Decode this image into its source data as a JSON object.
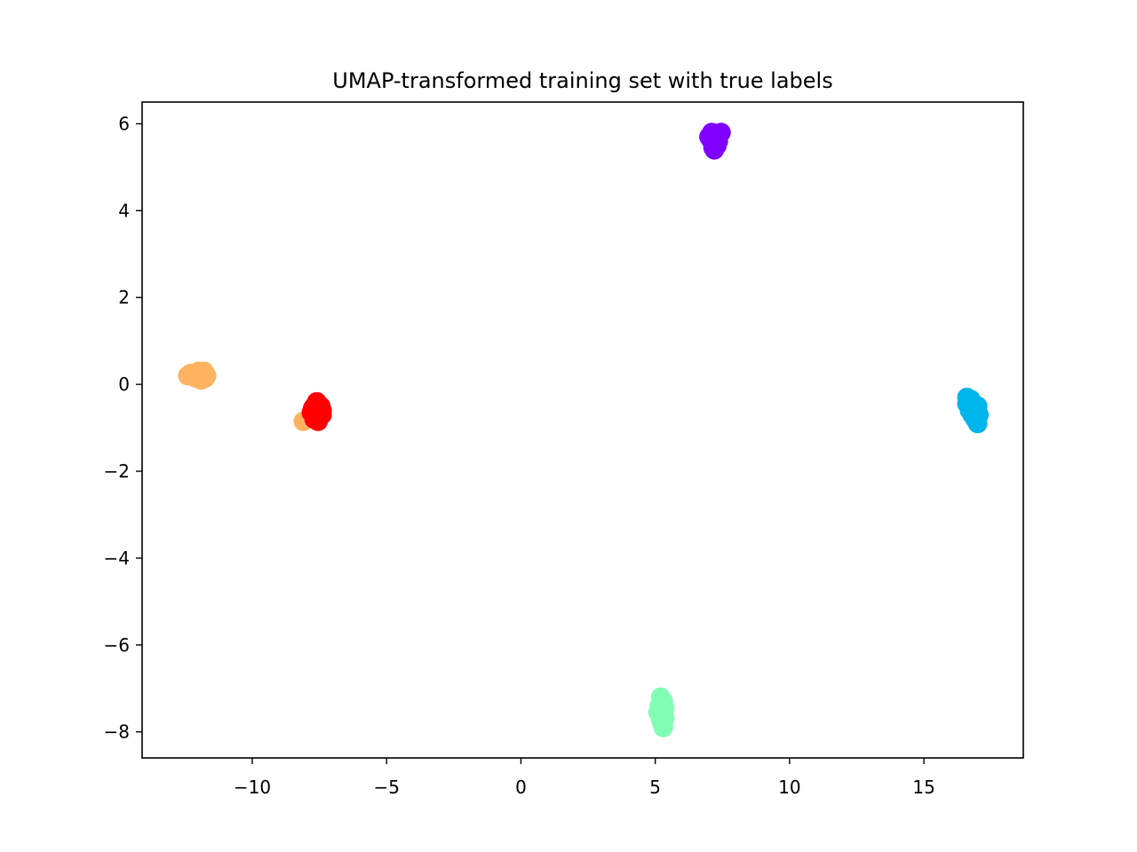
{
  "chart_data": {
    "type": "scatter",
    "title": "UMAP-transformed training set with true labels",
    "xlabel": "",
    "ylabel": "",
    "xlim": [
      -14.1,
      18.7
    ],
    "ylim": [
      -8.6,
      6.5
    ],
    "xticks": [
      -10,
      -5,
      0,
      5,
      10,
      15
    ],
    "yticks": [
      -8,
      -6,
      -4,
      -2,
      0,
      2,
      4,
      6
    ],
    "xtick_labels": [
      "−10",
      "−5",
      "0",
      "5",
      "10",
      "15"
    ],
    "ytick_labels": [
      "−8",
      "−6",
      "−4",
      "−2",
      "0",
      "2",
      "4",
      "6"
    ],
    "grid": false,
    "legend": "none",
    "series": [
      {
        "color": "#8000ff",
        "points": [
          [
            7.0,
            5.7
          ],
          [
            7.1,
            5.8
          ],
          [
            7.2,
            5.6
          ],
          [
            7.3,
            5.5
          ],
          [
            7.2,
            5.4
          ],
          [
            7.1,
            5.6
          ],
          [
            7.25,
            5.75
          ],
          [
            7.05,
            5.65
          ],
          [
            7.15,
            5.45
          ],
          [
            7.35,
            5.6
          ],
          [
            7.45,
            5.8
          ],
          [
            7.2,
            5.7
          ]
        ]
      },
      {
        "color": "#00b4ec",
        "points": [
          [
            16.6,
            -0.3
          ],
          [
            16.7,
            -0.4
          ],
          [
            16.8,
            -0.5
          ],
          [
            16.9,
            -0.6
          ],
          [
            17.0,
            -0.5
          ],
          [
            16.8,
            -0.7
          ],
          [
            16.9,
            -0.8
          ],
          [
            17.0,
            -0.9
          ],
          [
            16.7,
            -0.6
          ],
          [
            16.6,
            -0.45
          ],
          [
            17.05,
            -0.7
          ],
          [
            16.75,
            -0.35
          ]
        ]
      },
      {
        "color": "#80ffb4",
        "points": [
          [
            5.2,
            -7.2
          ],
          [
            5.3,
            -7.3
          ],
          [
            5.2,
            -7.5
          ],
          [
            5.3,
            -7.6
          ],
          [
            5.25,
            -7.8
          ],
          [
            5.15,
            -7.4
          ],
          [
            5.35,
            -7.45
          ],
          [
            5.2,
            -7.7
          ],
          [
            5.3,
            -7.9
          ],
          [
            5.25,
            -7.25
          ],
          [
            5.1,
            -7.55
          ],
          [
            5.35,
            -7.7
          ]
        ]
      },
      {
        "color": "#ffb360",
        "points": [
          [
            -12.4,
            0.2
          ],
          [
            -12.2,
            0.25
          ],
          [
            -12.0,
            0.2
          ],
          [
            -11.8,
            0.3
          ],
          [
            -11.7,
            0.2
          ],
          [
            -12.1,
            0.15
          ],
          [
            -11.9,
            0.1
          ],
          [
            -12.3,
            0.25
          ],
          [
            -11.75,
            0.15
          ],
          [
            -12.0,
            0.3
          ],
          [
            -8.1,
            -0.85
          ]
        ]
      },
      {
        "color": "#ff0000",
        "points": [
          [
            -7.6,
            -0.4
          ],
          [
            -7.7,
            -0.5
          ],
          [
            -7.5,
            -0.55
          ],
          [
            -7.4,
            -0.6
          ],
          [
            -7.6,
            -0.7
          ],
          [
            -7.8,
            -0.65
          ],
          [
            -7.7,
            -0.8
          ],
          [
            -7.5,
            -0.75
          ],
          [
            -7.4,
            -0.7
          ],
          [
            -7.65,
            -0.6
          ],
          [
            -7.55,
            -0.85
          ],
          [
            -7.75,
            -0.55
          ],
          [
            -7.45,
            -0.5
          ],
          [
            -7.6,
            -0.8
          ]
        ]
      }
    ]
  }
}
